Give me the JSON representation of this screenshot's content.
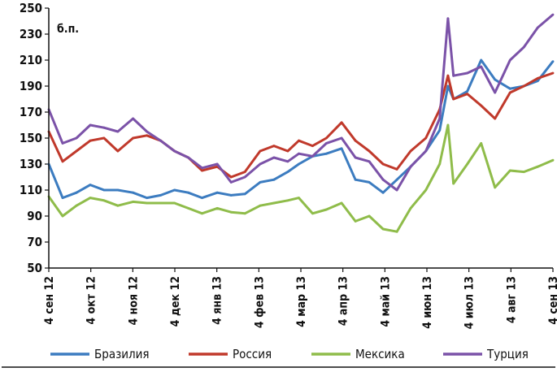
{
  "chart_data": {
    "type": "line",
    "title": "",
    "unit_label": "б.п.",
    "xlabel": "",
    "ylabel": "",
    "ylim": [
      50,
      250
    ],
    "yticks": [
      50,
      70,
      90,
      110,
      130,
      150,
      170,
      190,
      210,
      230,
      250
    ],
    "x_ticks": [
      "4 сен 12",
      "4 окт 12",
      "4 ноя 12",
      "4 дек 12",
      "4 янв 13",
      "4 фев 13",
      "4 мар 13",
      "4 апр 13",
      "4 май 13",
      "4 июн 13",
      "4 июл 13",
      "4 авг 13",
      "4 сен 13"
    ],
    "legend_position": "bottom",
    "grid": false,
    "x": [
      "2012-09-04",
      "2012-09-14",
      "2012-09-24",
      "2012-10-04",
      "2012-10-14",
      "2012-10-24",
      "2012-11-04",
      "2012-11-14",
      "2012-11-24",
      "2012-12-04",
      "2012-12-14",
      "2012-12-24",
      "2013-01-04",
      "2013-01-14",
      "2013-01-24",
      "2013-02-04",
      "2013-02-14",
      "2013-02-24",
      "2013-03-04",
      "2013-03-14",
      "2013-03-24",
      "2013-04-04",
      "2013-04-14",
      "2013-04-24",
      "2013-05-04",
      "2013-05-14",
      "2013-05-24",
      "2013-06-04",
      "2013-06-14",
      "2013-06-20",
      "2013-06-24",
      "2013-07-04",
      "2013-07-14",
      "2013-07-24",
      "2013-08-04",
      "2013-08-14",
      "2013-08-24",
      "2013-09-04"
    ],
    "series": [
      {
        "name": "Бразилия",
        "color": "#3c7cc0",
        "values": [
          130,
          104,
          108,
          114,
          110,
          110,
          108,
          104,
          106,
          110,
          108,
          104,
          108,
          106,
          107,
          116,
          118,
          124,
          130,
          136,
          138,
          142,
          118,
          116,
          108,
          118,
          128,
          140,
          156,
          190,
          180,
          186,
          210,
          195,
          188,
          190,
          194,
          209
        ]
      },
      {
        "name": "Россия",
        "color": "#c0392b",
        "values": [
          155,
          132,
          140,
          148,
          150,
          140,
          150,
          152,
          148,
          140,
          135,
          125,
          128,
          120,
          124,
          140,
          144,
          140,
          148,
          144,
          150,
          162,
          148,
          140,
          130,
          126,
          140,
          150,
          172,
          198,
          180,
          184,
          175,
          165,
          185,
          190,
          196,
          200
        ]
      },
      {
        "name": "Мексика",
        "color": "#8fbc4a",
        "values": [
          105,
          90,
          98,
          104,
          102,
          98,
          101,
          100,
          100,
          100,
          96,
          92,
          96,
          93,
          92,
          98,
          100,
          102,
          104,
          92,
          95,
          100,
          86,
          90,
          80,
          78,
          96,
          110,
          130,
          160,
          115,
          130,
          146,
          112,
          125,
          124,
          128,
          133
        ]
      },
      {
        "name": "Турция",
        "color": "#7b52a8",
        "values": [
          172,
          146,
          150,
          160,
          158,
          155,
          165,
          155,
          148,
          140,
          135,
          127,
          130,
          116,
          120,
          130,
          135,
          132,
          138,
          136,
          146,
          150,
          135,
          132,
          118,
          110,
          128,
          140,
          165,
          242,
          198,
          200,
          205,
          185,
          210,
          220,
          235,
          245
        ]
      }
    ]
  }
}
